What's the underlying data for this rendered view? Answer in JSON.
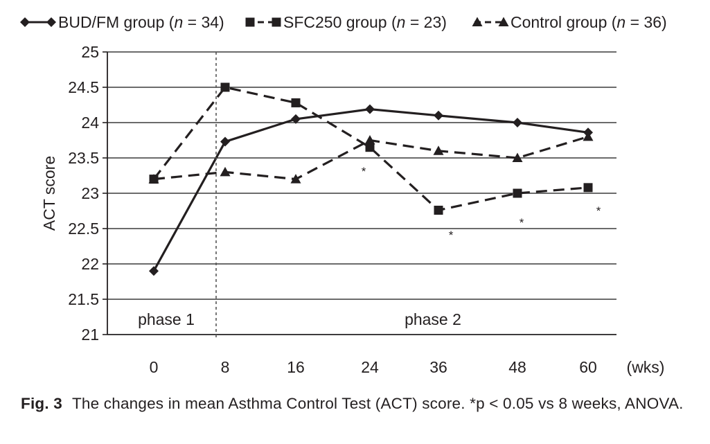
{
  "chart_data": {
    "type": "line",
    "categories": [
      "0",
      "8",
      "16",
      "24",
      "36",
      "48",
      "60"
    ],
    "x_unit": "(wks)",
    "ylabel": "ACT score",
    "ylim": [
      21,
      25
    ],
    "yticks": [
      "21",
      "21.5",
      "22",
      "22.5",
      "23",
      "23.5",
      "24",
      "24.5",
      "25"
    ],
    "grid": true,
    "legend_position": "top",
    "series": [
      {
        "name": "BUD/FM group",
        "n_label": "n = 34",
        "marker": "diamond",
        "line_style": "solid",
        "values": [
          21.9,
          23.73,
          24.05,
          24.19,
          24.1,
          24.0,
          23.86
        ]
      },
      {
        "name": "SFC250 group",
        "n_label": "n = 23",
        "marker": "square",
        "line_style": "dashed",
        "values": [
          23.2,
          24.5,
          24.28,
          23.65,
          22.76,
          23.0,
          23.08
        ]
      },
      {
        "name": "Control group",
        "n_label": "n = 36",
        "marker": "triangle",
        "line_style": "dashed",
        "values": [
          23.2,
          23.3,
          23.2,
          23.75,
          23.6,
          23.5,
          23.8
        ]
      }
    ],
    "significance_marker": "*",
    "significance_x": [
      "24",
      "36",
      "48",
      "60"
    ],
    "divider_after": "8",
    "phase_labels": [
      "phase 1",
      "phase 2"
    ]
  },
  "caption": {
    "fig_label": "Fig. 3",
    "text": "The changes in mean Asthma Control Test (ACT) score. *p < 0.05 vs 8 weeks, ANOVA."
  },
  "colors": {
    "ink": "#231f20",
    "grid": "#3a3a3a"
  }
}
